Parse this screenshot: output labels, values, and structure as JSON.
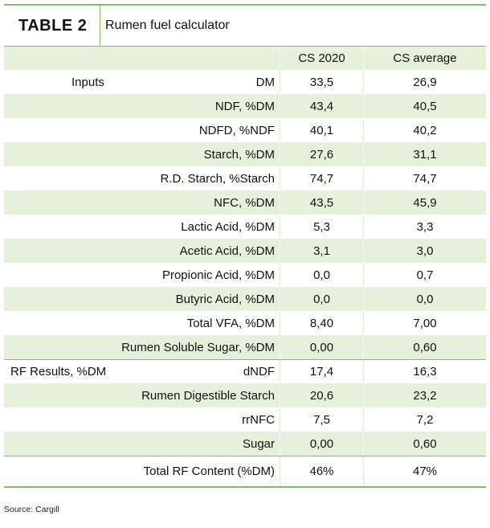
{
  "table": {
    "label": "TABLE 2",
    "title": "Rumen fuel calculator",
    "columns": [
      "CS 2020",
      "CS average"
    ],
    "sections": [
      {
        "group": "Inputs",
        "rows": [
          {
            "label": "DM",
            "cs2020": "33,5",
            "csavg": "26,9"
          },
          {
            "label": "NDF, %DM",
            "cs2020": "43,4",
            "csavg": "40,5"
          },
          {
            "label": "NDFD, %NDF",
            "cs2020": "40,1",
            "csavg": "40,2"
          },
          {
            "label": "Starch, %DM",
            "cs2020": "27,6",
            "csavg": "31,1"
          },
          {
            "label": "R.D. Starch, %Starch",
            "cs2020": "74,7",
            "csavg": "74,7"
          },
          {
            "label": "NFC, %DM",
            "cs2020": "43,5",
            "csavg": "45,9"
          },
          {
            "label": "Lactic Acid, %DM",
            "cs2020": "5,3",
            "csavg": "3,3"
          },
          {
            "label": "Acetic Acid, %DM",
            "cs2020": "3,1",
            "csavg": "3,0"
          },
          {
            "label": "Propionic Acid, %DM",
            "cs2020": "0,0",
            "csavg": "0,7"
          },
          {
            "label": "Butyric Acid, %DM",
            "cs2020": "0,0",
            "csavg": "0,0"
          },
          {
            "label": "Total VFA, %DM",
            "cs2020": "8,40",
            "csavg": "7,00"
          },
          {
            "label": "Rumen Soluble Sugar,  %DM",
            "cs2020": "0,00",
            "csavg": "0,60"
          }
        ]
      },
      {
        "group": "RF Results, %DM",
        "rows": [
          {
            "label": "dNDF",
            "cs2020": "17,4",
            "csavg": "16,3"
          },
          {
            "label": "Rumen Digestible Starch",
            "cs2020": "20,6",
            "csavg": "23,2"
          },
          {
            "label": "rrNFC",
            "cs2020": "7,5",
            "csavg": "7,2"
          },
          {
            "label": "Sugar",
            "cs2020": "0,00",
            "csavg": "0,60"
          }
        ]
      }
    ],
    "total": {
      "label": "Total RF Content (%DM)",
      "cs2020": "46%",
      "csavg": "47%"
    }
  },
  "source": "Source: Cargill",
  "colors": {
    "accent_green": "#7fbe63",
    "row_shade": "#e6f1dc"
  }
}
